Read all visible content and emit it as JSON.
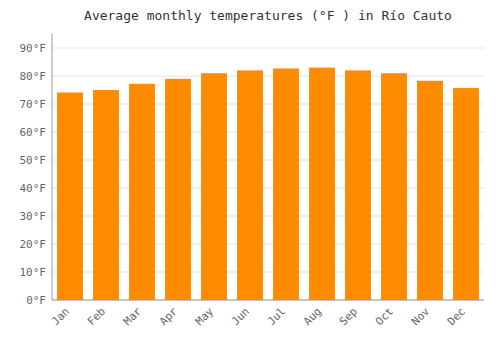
{
  "chart_data": {
    "type": "bar",
    "title": "Average monthly temperatures (°F ) in Río Cauto",
    "categories": [
      "Jan",
      "Feb",
      "Mar",
      "Apr",
      "May",
      "Jun",
      "Jul",
      "Aug",
      "Sep",
      "Oct",
      "Nov",
      "Dec"
    ],
    "values": [
      74.1,
      75.0,
      77.2,
      79.0,
      81.0,
      82.0,
      82.7,
      83.0,
      82.0,
      81.0,
      78.3,
      75.7
    ],
    "color": "#FF8C00",
    "ylim": [
      0,
      95
    ],
    "yticks": [
      {
        "value": 0,
        "label": "0°F"
      },
      {
        "value": 10,
        "label": "10°F"
      },
      {
        "value": 20,
        "label": "20°F"
      },
      {
        "value": 30,
        "label": "30°F"
      },
      {
        "value": 40,
        "label": "40°F"
      },
      {
        "value": 50,
        "label": "50°F"
      },
      {
        "value": 60,
        "label": "60°F"
      },
      {
        "value": 70,
        "label": "70°F"
      },
      {
        "value": 80,
        "label": "80°F"
      },
      {
        "value": 90,
        "label": "90°F"
      }
    ],
    "grid": true
  }
}
